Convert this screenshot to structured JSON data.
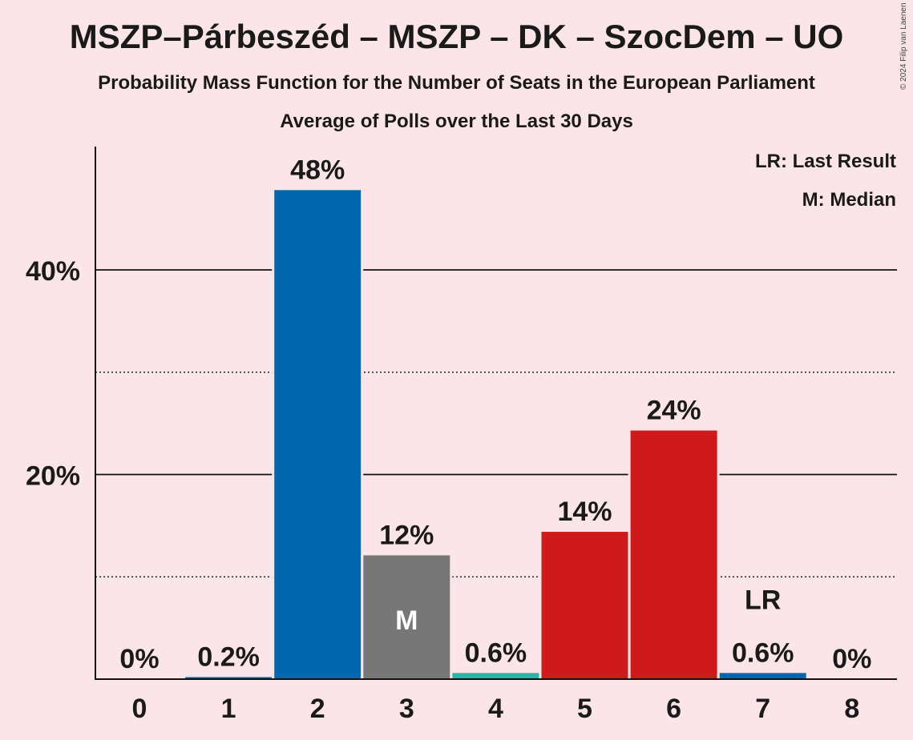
{
  "title": "MSZP–Párbeszéd – MSZP – DK – SzocDem – UO",
  "subtitle": "Probability Mass Function for the Number of Seats in the European Parliament",
  "subtitle2": "Average of Polls over the Last 30 Days",
  "copyright": "© 2024 Filip van Laenen",
  "legend": {
    "last_result": "LR: Last Result",
    "median": "M: Median"
  },
  "colors": {
    "background": "#fce5e8",
    "blue": "#0067ad",
    "gray": "#777777",
    "teal": "#2ab5a6",
    "red": "#cf1a1c"
  },
  "chart_data": {
    "type": "bar",
    "categories": [
      "0",
      "1",
      "2",
      "3",
      "4",
      "5",
      "6",
      "7",
      "8"
    ],
    "values": [
      0,
      0.2,
      47.8,
      12.1,
      0.6,
      14.4,
      24.3,
      0.6,
      0
    ],
    "labels": [
      "0%",
      "0.2%",
      "48%",
      "12%",
      "0.6%",
      "14%",
      "24%",
      "0.6%",
      "0%"
    ],
    "bar_colors": [
      "#0067ad",
      "#0067ad",
      "#0067ad",
      "#777777",
      "#2ab5a6",
      "#cf1a1c",
      "#cf1a1c",
      "#0067ad",
      "#0067ad"
    ],
    "yticks": [
      20,
      40
    ],
    "ytick_labels": [
      "20%",
      "40%"
    ],
    "minor_gridlines": [
      10,
      30
    ],
    "ylim": [
      0,
      52
    ],
    "median_index": 3,
    "median_marker": "M",
    "last_result_index": 7,
    "last_result_marker": "LR",
    "legend_position": "top-right"
  }
}
